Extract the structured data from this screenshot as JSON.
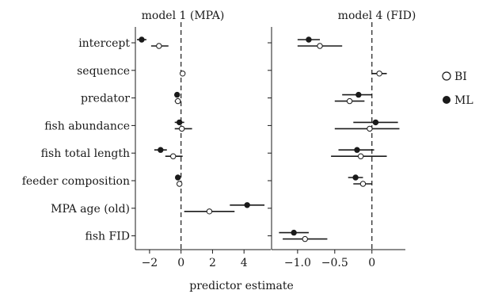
{
  "chart_data": {
    "type": "scatter",
    "xlabel": "predictor estimate",
    "categories": [
      "intercept",
      "sequence",
      "predator",
      "fish abundance",
      "fish total length",
      "feeder composition",
      "MPA age (old)",
      "fish FID"
    ],
    "legend": {
      "placement": "right",
      "entries": [
        {
          "label": "BI",
          "marker": "open-circle"
        },
        {
          "label": "ML",
          "marker": "filled-circle"
        }
      ]
    },
    "panels": [
      {
        "title": "model 1 (MPA)",
        "xlim": [
          -2.9,
          5.7
        ],
        "xticks": [
          -2,
          0,
          2,
          4
        ],
        "xtick_labels": [
          "−2",
          "0",
          "2",
          "4"
        ],
        "zero_line": 0,
        "series": [
          {
            "name": "ML",
            "points": [
              {
                "category": "intercept",
                "estimate": -2.5,
                "low": -2.8,
                "high": -2.2
              },
              {
                "category": "predator",
                "estimate": -0.25,
                "low": -0.4,
                "high": -0.1
              },
              {
                "category": "fish abundance",
                "estimate": -0.1,
                "low": -0.4,
                "high": 0.2
              },
              {
                "category": "fish total length",
                "estimate": -1.3,
                "low": -1.7,
                "high": -0.9
              },
              {
                "category": "feeder composition",
                "estimate": -0.2,
                "low": -0.3,
                "high": -0.1
              },
              {
                "category": "MPA age (old)",
                "estimate": 4.2,
                "low": 3.1,
                "high": 5.3
              }
            ]
          },
          {
            "name": "BI",
            "points": [
              {
                "category": "intercept",
                "estimate": -1.4,
                "low": -1.9,
                "high": -0.8
              },
              {
                "category": "sequence",
                "estimate": 0.1,
                "low": 0.0,
                "high": 0.2
              },
              {
                "category": "predator",
                "estimate": -0.2,
                "low": -0.4,
                "high": 0.0
              },
              {
                "category": "fish abundance",
                "estimate": 0.05,
                "low": -0.4,
                "high": 0.7
              },
              {
                "category": "fish total length",
                "estimate": -0.5,
                "low": -1.0,
                "high": 0.1
              },
              {
                "category": "feeder composition",
                "estimate": -0.1,
                "low": -0.2,
                "high": 0.0
              },
              {
                "category": "MPA age (old)",
                "estimate": 1.8,
                "low": 0.2,
                "high": 3.4
              }
            ]
          }
        ]
      },
      {
        "title": "model 4 (FID)",
        "xlim": [
          -1.35,
          0.45
        ],
        "xticks": [
          -1.0,
          -0.5,
          0
        ],
        "xtick_labels": [
          "−1.0",
          "−0.5",
          "0"
        ],
        "zero_line": 0,
        "series": [
          {
            "name": "ML",
            "points": [
              {
                "category": "intercept",
                "estimate": -0.85,
                "low": -1.0,
                "high": -0.7
              },
              {
                "category": "predator",
                "estimate": -0.18,
                "low": -0.4,
                "high": 0.0
              },
              {
                "category": "fish abundance",
                "estimate": 0.05,
                "low": -0.25,
                "high": 0.35
              },
              {
                "category": "fish total length",
                "estimate": -0.2,
                "low": -0.45,
                "high": 0.03
              },
              {
                "category": "feeder composition",
                "estimate": -0.22,
                "low": -0.32,
                "high": -0.12
              },
              {
                "category": "fish FID",
                "estimate": -1.05,
                "low": -1.25,
                "high": -0.85
              }
            ]
          },
          {
            "name": "BI",
            "points": [
              {
                "category": "intercept",
                "estimate": -0.7,
                "low": -1.0,
                "high": -0.4
              },
              {
                "category": "sequence",
                "estimate": 0.1,
                "low": 0.0,
                "high": 0.2
              },
              {
                "category": "predator",
                "estimate": -0.3,
                "low": -0.5,
                "high": -0.1
              },
              {
                "category": "fish abundance",
                "estimate": -0.03,
                "low": -0.5,
                "high": 0.37
              },
              {
                "category": "fish total length",
                "estimate": -0.15,
                "low": -0.55,
                "high": 0.2
              },
              {
                "category": "feeder composition",
                "estimate": -0.12,
                "low": -0.25,
                "high": 0.0
              },
              {
                "category": "fish FID",
                "estimate": -0.9,
                "low": -1.2,
                "high": -0.6
              }
            ]
          }
        ]
      }
    ]
  }
}
